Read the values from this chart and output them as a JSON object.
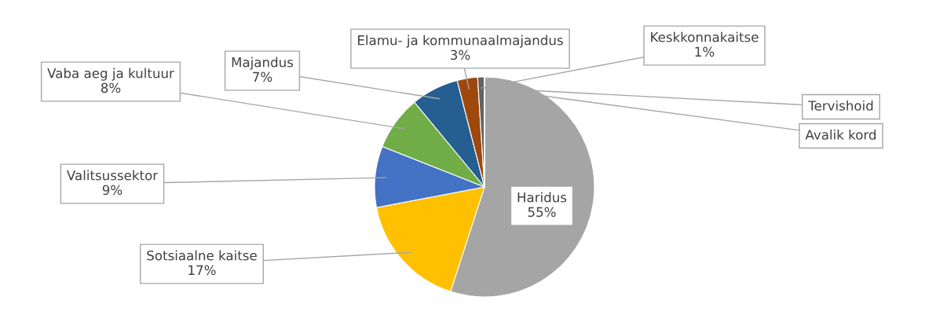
{
  "chart_data": {
    "type": "pie",
    "categories": [
      "Haridus",
      "Sotsiaalne kaitse",
      "Valitsussektor",
      "Vaba aeg ja kultuur",
      "Majandus",
      "Elamu- ja kommunaalmajandus",
      "Keskkonnakaitse",
      "Tervishoid",
      "Avalik kord"
    ],
    "values": [
      55,
      17,
      9,
      8,
      7,
      3,
      1,
      0,
      0
    ],
    "value_labels": [
      "55%",
      "17%",
      "9%",
      "8%",
      "7%",
      "3%",
      "1%",
      null,
      null
    ],
    "colors": [
      "#a5a5a5",
      "#ffc000",
      "#4472c4",
      "#70ad47",
      "#255e91",
      "#9e480e",
      "#636363",
      "#997300",
      "#264478"
    ],
    "legend": false
  }
}
